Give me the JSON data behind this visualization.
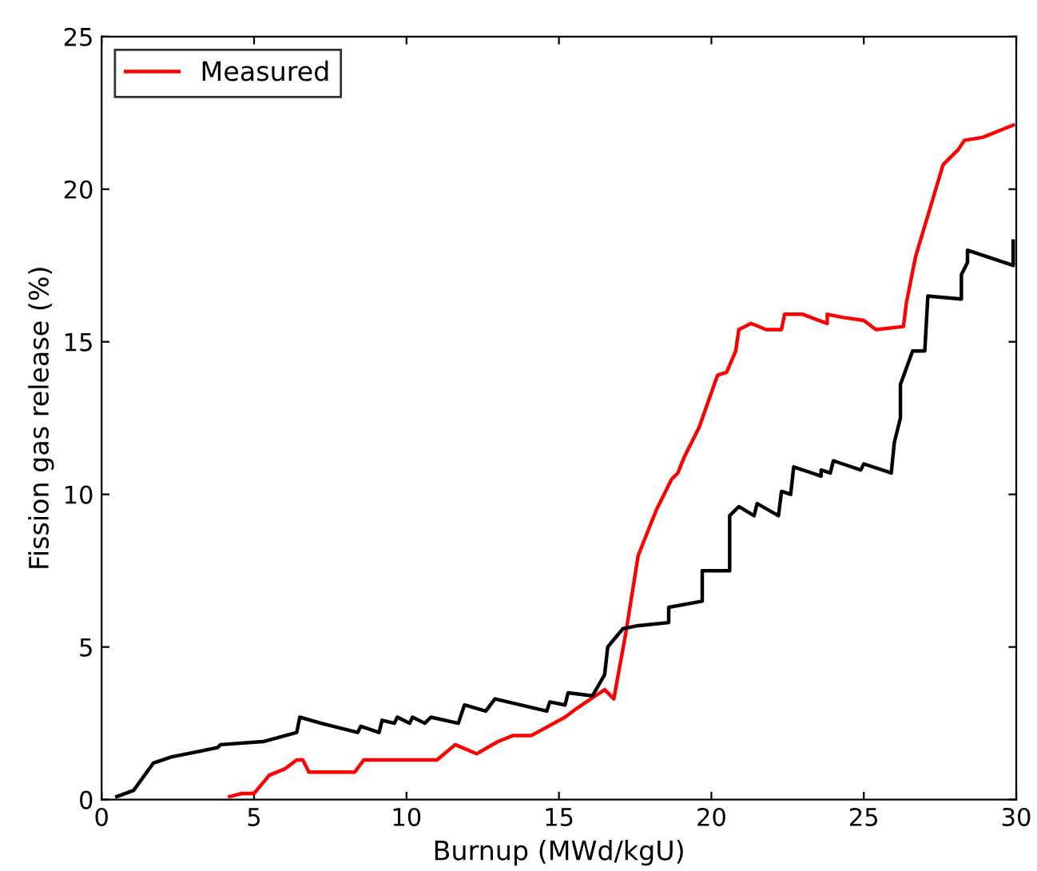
{
  "chart_data": {
    "type": "line",
    "xlabel": "Burnup (MWd/kgU)",
    "ylabel": "Fission gas release (%)",
    "xlim": [
      0,
      30
    ],
    "ylim": [
      0,
      25
    ],
    "xticks": [
      0,
      5,
      10,
      15,
      20,
      25,
      30
    ],
    "yticks": [
      0,
      5,
      10,
      15,
      20,
      25
    ],
    "grid": false,
    "legend": "top left",
    "marker": "none",
    "line_style": "solid",
    "series": [
      {
        "name": "Measured",
        "color": "#ff0000",
        "x": [
          4.2,
          4.6,
          5.0,
          5.5,
          6.0,
          6.4,
          6.6,
          6.8,
          8.3,
          8.6,
          11.0,
          11.6,
          12.3,
          13.0,
          13.5,
          14.1,
          15.2,
          15.6,
          16.2,
          16.5,
          16.8,
          17.2,
          17.6,
          18.2,
          18.7,
          18.9,
          19.1,
          19.6,
          20.2,
          20.5,
          20.8,
          20.9,
          21.3,
          21.8,
          22.3,
          22.4,
          23.0,
          23.8,
          23.8,
          24.3,
          25.0,
          25.4,
          26.3,
          26.4,
          26.7,
          27.3,
          27.6,
          28.1,
          28.3,
          28.9,
          29.9
        ],
        "values": [
          0.1,
          0.2,
          0.2,
          0.8,
          1.0,
          1.3,
          1.3,
          0.9,
          0.9,
          1.3,
          1.3,
          1.8,
          1.5,
          1.9,
          2.1,
          2.1,
          2.7,
          3.0,
          3.4,
          3.6,
          3.3,
          5.5,
          8.0,
          9.5,
          10.5,
          10.7,
          11.2,
          12.2,
          13.9,
          14.0,
          14.7,
          15.4,
          15.6,
          15.4,
          15.4,
          15.9,
          15.9,
          15.6,
          15.9,
          15.8,
          15.7,
          15.4,
          15.5,
          16.3,
          17.8,
          19.8,
          20.8,
          21.3,
          21.6,
          21.7,
          22.1
        ]
      },
      {
        "color": "#000000",
        "x": [
          0.5,
          1.05,
          1.7,
          2.3,
          3.8,
          3.9,
          5.3,
          6.4,
          6.5,
          7.2,
          8.4,
          8.5,
          9.1,
          9.2,
          9.6,
          9.7,
          10.1,
          10.2,
          10.6,
          10.8,
          11.7,
          11.9,
          12.6,
          12.9,
          14.6,
          14.7,
          15.2,
          15.3,
          16.1,
          16.5,
          16.6,
          17.1,
          17.6,
          18.6,
          18.6,
          19.7,
          19.7,
          20.6,
          20.6,
          20.9,
          21.4,
          21.5,
          22.2,
          22.3,
          22.6,
          22.7,
          23.6,
          23.6,
          23.9,
          24.0,
          24.3,
          24.9,
          25.0,
          25.9,
          26.0,
          26.2,
          26.2,
          26.6,
          27.0,
          27.1,
          28.2,
          28.2,
          28.4,
          28.4,
          29.9,
          29.9
        ],
        "values": [
          0.1,
          0.3,
          1.2,
          1.4,
          1.7,
          1.8,
          1.9,
          2.2,
          2.7,
          2.5,
          2.2,
          2.4,
          2.2,
          2.6,
          2.5,
          2.7,
          2.5,
          2.7,
          2.5,
          2.7,
          2.5,
          3.1,
          2.9,
          3.3,
          2.9,
          3.2,
          3.1,
          3.5,
          3.4,
          4.1,
          5.0,
          5.6,
          5.7,
          5.8,
          6.3,
          6.5,
          7.5,
          7.5,
          9.3,
          9.6,
          9.3,
          9.7,
          9.3,
          10.1,
          10.0,
          10.9,
          10.6,
          10.8,
          10.7,
          11.1,
          11.0,
          10.8,
          11.0,
          10.7,
          11.7,
          12.5,
          13.6,
          14.7,
          14.7,
          16.5,
          16.4,
          17.2,
          17.6,
          18.0,
          17.5,
          18.3
        ]
      }
    ]
  }
}
